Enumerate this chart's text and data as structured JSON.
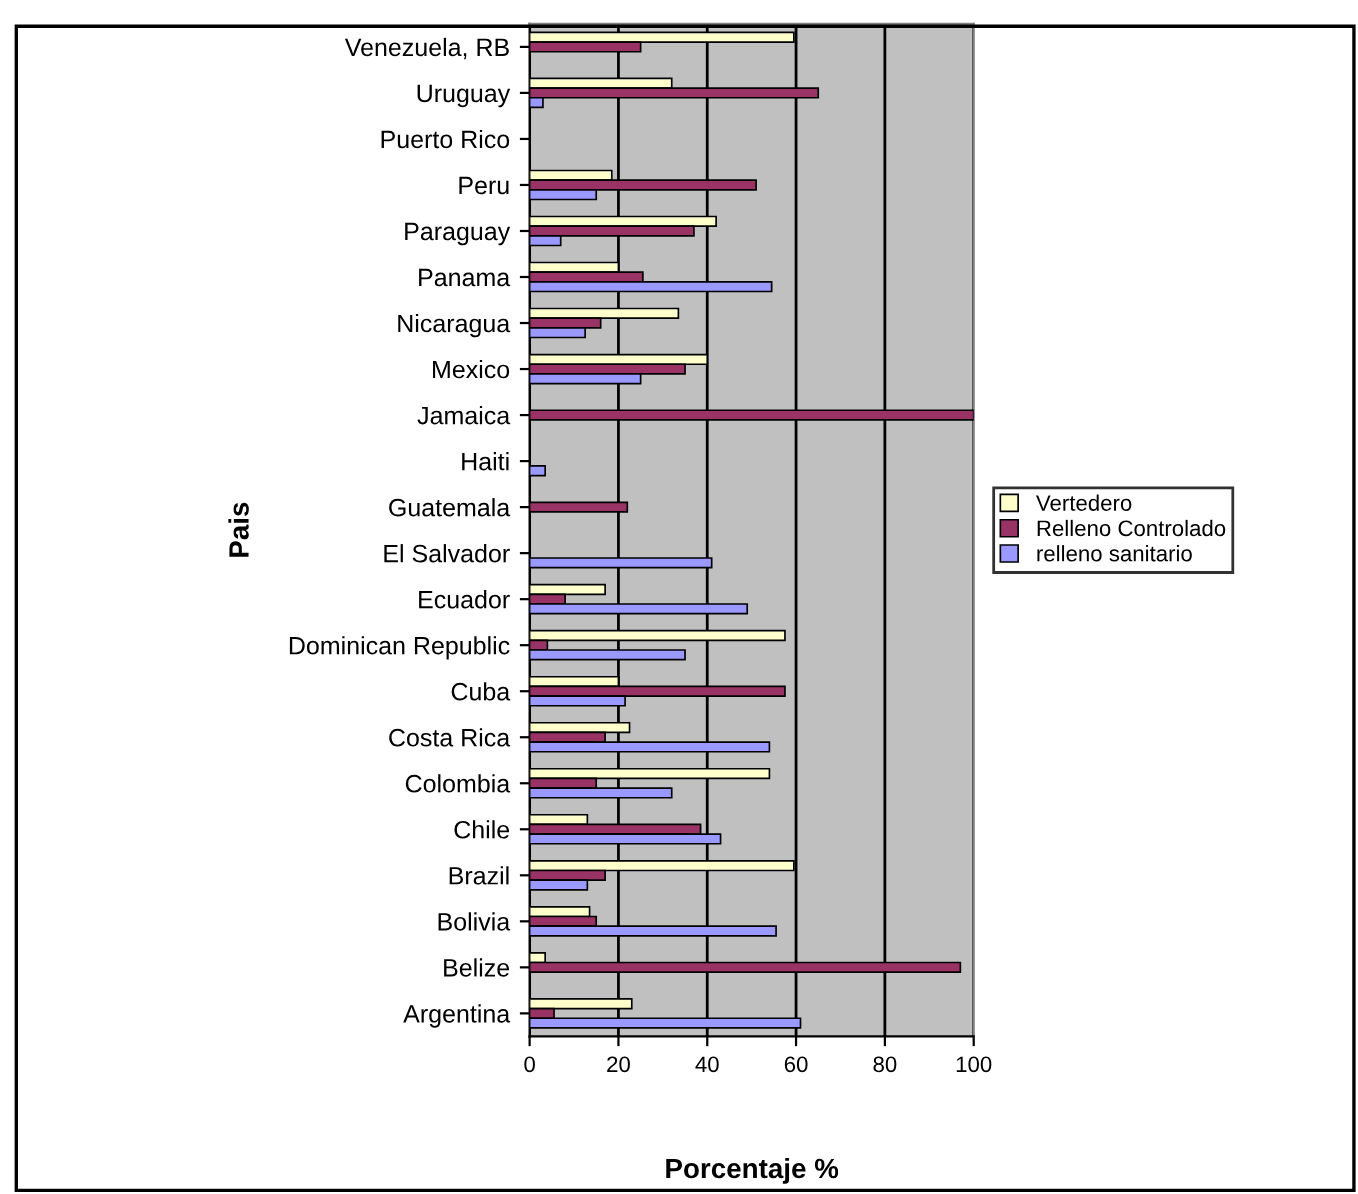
{
  "chart_data": {
    "type": "bar",
    "orientation": "horizontal",
    "xlabel": "Porcentaje %",
    "ylabel": "Pais",
    "categories": [
      "Venezuela, RB",
      "Uruguay",
      "Puerto Rico",
      "Peru",
      "Paraguay",
      "Panama",
      "Nicaragua",
      "Mexico",
      "Jamaica",
      "Haiti",
      "Guatemala",
      "El Salvador",
      "Ecuador",
      "Dominican Republic",
      "Cuba",
      "Costa Rica",
      "Colombia",
      "Chile",
      "Brazil",
      "Bolivia",
      "Belize",
      "Argentina"
    ],
    "series": [
      {
        "name": "Vertedero",
        "color": "#ffffcc",
        "values": [
          59.5,
          32,
          null,
          18.5,
          42,
          20,
          33.5,
          40,
          null,
          null,
          null,
          null,
          17,
          57.5,
          20,
          22.5,
          54,
          13,
          59.5,
          13.5,
          3.5,
          23
        ]
      },
      {
        "name": "Relleno Controlado",
        "color": "#993366",
        "values": [
          25,
          65,
          null,
          51,
          37,
          25.5,
          16,
          35,
          100,
          null,
          22,
          null,
          8,
          4,
          57.5,
          17,
          15,
          38.5,
          17,
          15,
          97,
          5.5
        ]
      },
      {
        "name": "relleno sanitario",
        "color": "#9999ff",
        "values": [
          null,
          3,
          null,
          15,
          7,
          54.5,
          12.5,
          25,
          null,
          3.5,
          null,
          41,
          49,
          35,
          21.5,
          54,
          32,
          43,
          13,
          55.5,
          null,
          61
        ]
      }
    ],
    "xlim": [
      0,
      100
    ],
    "xticks": [
      0,
      20,
      40,
      60,
      80,
      100
    ],
    "grid": "x",
    "legend": "right"
  }
}
